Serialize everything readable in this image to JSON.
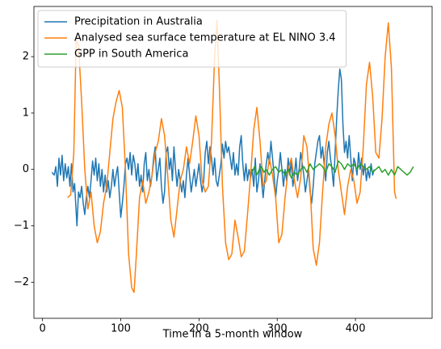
{
  "chart_data": {
    "type": "line",
    "xlabel": "Time in a 5-month window",
    "xlim": [
      -11,
      498
    ],
    "ylim": [
      -2.64,
      2.89
    ],
    "xticks": [
      0,
      100,
      200,
      300,
      400
    ],
    "yticks": [
      -2,
      -1,
      0,
      1,
      2
    ],
    "legend": "upper left",
    "series": [
      {
        "name": "Precipitation in Australia",
        "color": "#1f77b4",
        "x": [
          12,
          15,
          17,
          19,
          21,
          23,
          25,
          27,
          29,
          31,
          33,
          35,
          37,
          39,
          41,
          44,
          46,
          48,
          50,
          52,
          54,
          56,
          58,
          60,
          62,
          64,
          66,
          68,
          70,
          72,
          74,
          76,
          78,
          80,
          82,
          84,
          86,
          88,
          90,
          92,
          94,
          96,
          98,
          100,
          102,
          104,
          106,
          108,
          110,
          112,
          114,
          116,
          118,
          120,
          122,
          124,
          126,
          128,
          130,
          132,
          134,
          136,
          138,
          140,
          142,
          144,
          146,
          148,
          150,
          152,
          154,
          156,
          158,
          160,
          162,
          164,
          166,
          168,
          170,
          172,
          174,
          176,
          178,
          180,
          182,
          184,
          186,
          188,
          190,
          192,
          194,
          196,
          198,
          200,
          202,
          204,
          206,
          208,
          210,
          212,
          214,
          216,
          218,
          220,
          222,
          224,
          226,
          228,
          230,
          232,
          234,
          236,
          238,
          240,
          242,
          244,
          246,
          248,
          250,
          252,
          254,
          256,
          258,
          260,
          262,
          264,
          266,
          268,
          270,
          272,
          274,
          276,
          278,
          280,
          282,
          284,
          286,
          288,
          290,
          292,
          294,
          296,
          298,
          300,
          302,
          304,
          306,
          308,
          310,
          312,
          314,
          316,
          318,
          320,
          322,
          324,
          326,
          328,
          330,
          332,
          334,
          336,
          338,
          340,
          342,
          344,
          346,
          348,
          350,
          352,
          354,
          356,
          358,
          360,
          362,
          364,
          366,
          368,
          370,
          372,
          374,
          376,
          378,
          380,
          382,
          384,
          386,
          388,
          390,
          392,
          394,
          396,
          398,
          400,
          402,
          404,
          406,
          408,
          410,
          412,
          414,
          416,
          418,
          420,
          422,
          424
        ],
        "values": [
          -0.05,
          -0.1,
          0.05,
          -0.3,
          0.2,
          -0.1,
          0.25,
          -0.2,
          0.1,
          -0.15,
          0.05,
          -0.3,
          0.1,
          -0.4,
          -0.25,
          -1.0,
          -0.4,
          -0.5,
          -0.3,
          -0.6,
          -0.8,
          -0.5,
          -0.3,
          -0.5,
          -0.2,
          0.15,
          -0.1,
          0.2,
          -0.2,
          0.1,
          -0.3,
          0.0,
          -0.4,
          -0.1,
          -0.4,
          -0.2,
          -0.5,
          -0.3,
          0.0,
          -0.3,
          -0.1,
          0.05,
          -0.4,
          -0.85,
          -0.6,
          -0.3,
          0.1,
          0.2,
          0.0,
          0.3,
          -0.1,
          0.25,
          0.1,
          -0.2,
          0.1,
          -0.3,
          -0.1,
          -0.4,
          0.1,
          0.3,
          -0.2,
          0.0,
          -0.3,
          -0.1,
          0.2,
          0.4,
          -0.2,
          0.0,
          0.2,
          -0.3,
          -0.6,
          -0.4,
          0.3,
          0.4,
          0.0,
          0.2,
          -0.2,
          0.4,
          0.0,
          -0.3,
          0.0,
          -0.2,
          -0.4,
          -0.2,
          -0.5,
          -0.1,
          0.2,
          -0.1,
          -0.4,
          -0.2,
          0.0,
          -0.3,
          -0.1,
          0.1,
          -0.2,
          -0.4,
          -0.2,
          0.3,
          0.5,
          0.1,
          0.4,
          0.2,
          -0.1,
          0.2,
          -0.2,
          -0.3,
          -0.1,
          0.1,
          0.45,
          0.2,
          0.5,
          0.3,
          0.4,
          0.2,
          0.0,
          0.3,
          -0.1,
          0.1,
          -0.1,
          0.4,
          0.6,
          0.1,
          -0.2,
          0.1,
          -0.2,
          0.0,
          -0.15,
          0.0,
          -0.3,
          0.2,
          -0.4,
          -0.2,
          0.1,
          -0.2,
          -0.5,
          -0.2,
          0.1,
          0.3,
          0.1,
          0.5,
          0.2,
          -0.1,
          -0.5,
          -0.2,
          0.0,
          0.3,
          0.0,
          -0.3,
          0.0,
          -0.2,
          0.2,
          -0.1,
          0.15,
          -0.3,
          -0.1,
          0.2,
          -0.2,
          0.0,
          0.3,
          0.1,
          -0.1,
          -0.4,
          -0.2,
          0.0,
          -0.4,
          -0.6,
          -0.3,
          0.1,
          0.3,
          0.5,
          0.6,
          0.2,
          0.4,
          0.1,
          -0.2,
          0.3,
          0.5,
          0.2,
          0.0,
          -0.3,
          0.3,
          0.9,
          1.4,
          1.78,
          1.6,
          0.8,
          0.3,
          0.5,
          0.2,
          0.6,
          0.2,
          -0.2,
          0.2,
          0.1,
          -0.1,
          0.3,
          0.0,
          0.2,
          -0.1,
          0.1,
          -0.2,
          0.0,
          -0.15,
          0.1,
          -0.1,
          0.0
        ]
      },
      {
        "name": "Analysed sea surface temperature at EL NINO 3.4",
        "color": "#ff7f0e",
        "x": [
          32,
          36,
          40,
          43,
          46,
          50,
          54,
          58,
          62,
          66,
          70,
          74,
          78,
          82,
          86,
          90,
          94,
          98,
          102,
          106,
          110,
          114,
          117,
          120,
          124,
          128,
          132,
          136,
          140,
          144,
          148,
          152,
          156,
          160,
          164,
          168,
          172,
          176,
          180,
          184,
          188,
          192,
          196,
          200,
          204,
          208,
          212,
          216,
          220,
          223,
          226,
          230,
          234,
          238,
          242,
          246,
          250,
          254,
          258,
          262,
          266,
          270,
          274,
          278,
          282,
          286,
          290,
          294,
          298,
          302,
          306,
          310,
          314,
          318,
          322,
          326,
          330,
          334,
          338,
          342,
          346,
          350,
          354,
          358,
          362,
          366,
          370,
          374,
          378,
          382,
          386,
          390,
          394,
          398,
          402,
          406,
          410,
          414,
          418,
          422,
          426,
          430,
          434,
          438,
          442,
          446,
          450,
          452
        ],
        "values": [
          -0.5,
          -0.45,
          0.3,
          2.3,
          2.2,
          1.2,
          0.0,
          -0.7,
          -0.4,
          -1.0,
          -1.3,
          -1.1,
          -0.6,
          -0.3,
          0.3,
          0.9,
          1.2,
          1.4,
          1.1,
          0.0,
          -1.5,
          -2.1,
          -2.18,
          -1.5,
          -0.5,
          -0.2,
          -0.6,
          -0.4,
          -0.1,
          0.3,
          0.5,
          0.9,
          0.6,
          -0.1,
          -0.9,
          -1.2,
          -0.7,
          -0.2,
          0.0,
          0.4,
          0.1,
          0.5,
          0.95,
          0.6,
          -0.2,
          -0.4,
          -0.3,
          0.5,
          2.0,
          2.65,
          1.5,
          -0.3,
          -1.3,
          -1.6,
          -1.5,
          -0.9,
          -1.2,
          -1.55,
          -1.45,
          -0.8,
          -0.1,
          0.7,
          1.1,
          0.5,
          -0.3,
          -0.2,
          0.2,
          -0.1,
          -0.5,
          -1.3,
          -1.15,
          -0.5,
          0.0,
          0.2,
          -0.2,
          -0.5,
          -0.15,
          0.6,
          0.4,
          -0.3,
          -1.4,
          -1.7,
          -1.3,
          -0.4,
          0.4,
          0.8,
          1.0,
          0.6,
          0.0,
          -0.4,
          -0.8,
          -0.3,
          0.0,
          -0.2,
          -0.6,
          -0.4,
          0.4,
          1.5,
          1.9,
          1.3,
          0.3,
          0.2,
          0.9,
          2.0,
          2.6,
          1.8,
          -0.4,
          -0.52
        ]
      },
      {
        "name": "GPP in South America",
        "color": "#2ca02c",
        "x": [
          268,
          271,
          274,
          277,
          280,
          283,
          286,
          290,
          294,
          298,
          302,
          306,
          310,
          314,
          318,
          322,
          326,
          330,
          334,
          338,
          342,
          346,
          350,
          354,
          358,
          362,
          366,
          370,
          374,
          378,
          382,
          386,
          390,
          394,
          398,
          402,
          406,
          410,
          414,
          418,
          422,
          426,
          430,
          434,
          438,
          442,
          446,
          450,
          454,
          458,
          462,
          466,
          470,
          474
        ],
        "values": [
          -0.05,
          0.05,
          -0.1,
          0.0,
          0.05,
          -0.05,
          0.0,
          -0.1,
          0.0,
          0.05,
          -0.05,
          0.0,
          -0.1,
          0.0,
          -0.15,
          -0.05,
          -0.1,
          0.0,
          0.05,
          -0.05,
          0.1,
          0.0,
          0.05,
          0.1,
          0.05,
          -0.05,
          0.1,
          0.05,
          -0.05,
          0.15,
          0.1,
          0.0,
          0.1,
          0.05,
          0.1,
          0.0,
          0.1,
          0.05,
          0.0,
          0.05,
          -0.05,
          0.0,
          0.05,
          -0.05,
          0.0,
          -0.1,
          0.0,
          -0.1,
          0.05,
          0.0,
          -0.05,
          -0.1,
          -0.05,
          0.05
        ]
      }
    ]
  }
}
